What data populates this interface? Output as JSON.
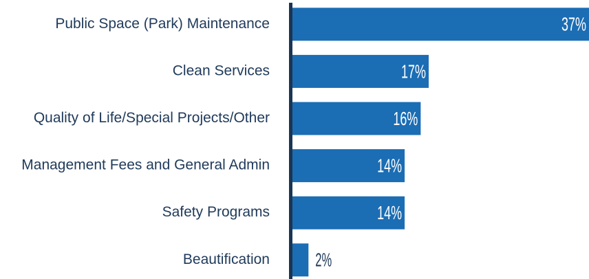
{
  "chart_data": {
    "type": "bar",
    "orientation": "horizontal",
    "categories": [
      "Public Space (Park) Maintenance",
      "Clean Services",
      "Quality of Life/Special Projects/Other",
      "Management Fees and General Admin",
      "Safety Programs",
      "Beautification"
    ],
    "values": [
      37,
      17,
      16,
      14,
      14,
      2
    ],
    "value_labels": [
      "37%",
      "17%",
      "16%",
      "14%",
      "14%",
      "2%"
    ],
    "color": "#1b6db4"
  }
}
